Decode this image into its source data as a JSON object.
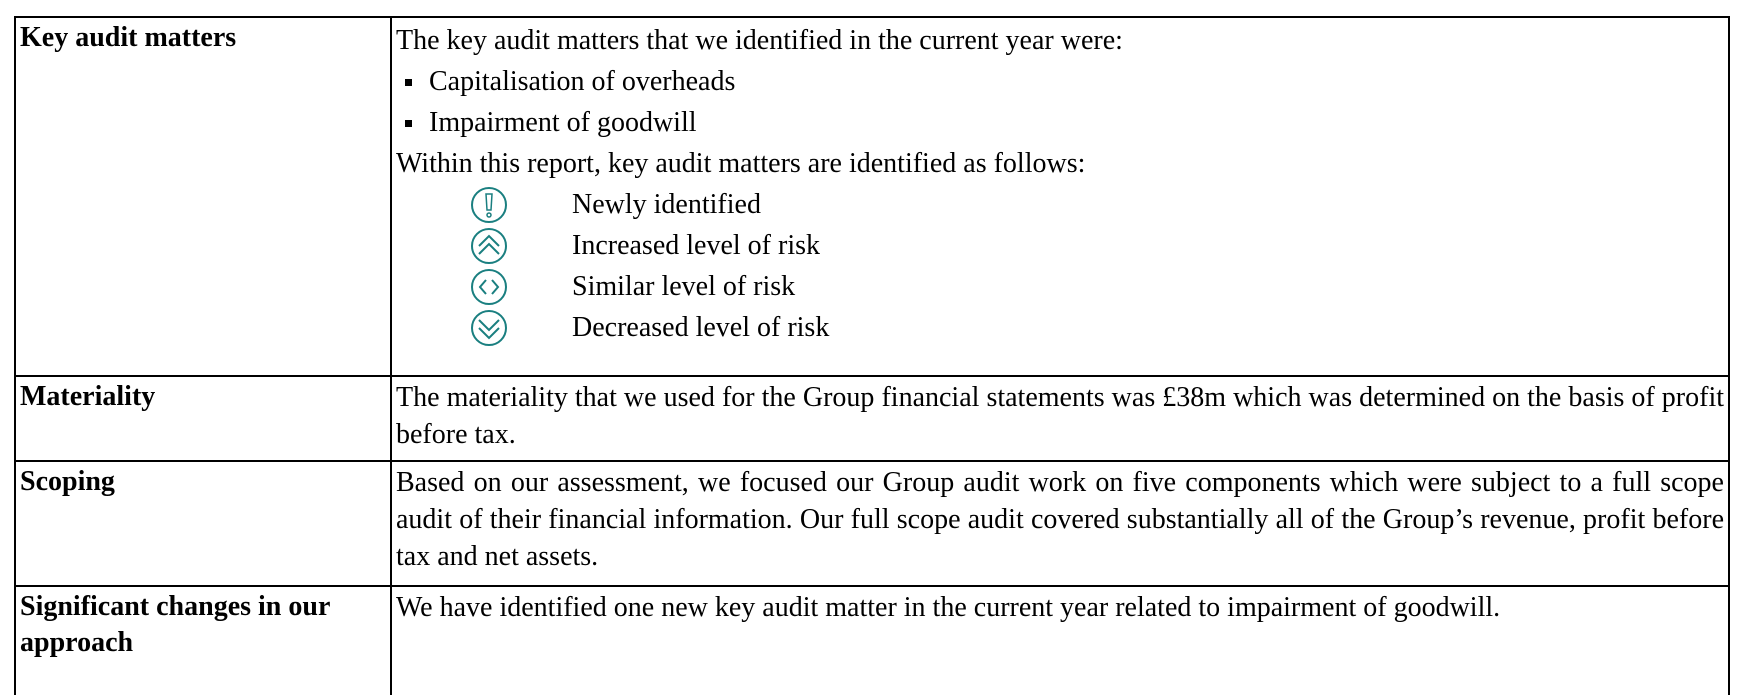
{
  "rows": [
    {
      "label": "Key audit matters",
      "intro": "The key audit matters that we identified in the current year were:",
      "bullets": [
        "Capitalisation of overheads",
        "Impairment of goodwill"
      ],
      "legend_intro": "Within this report, key audit matters are identified as follows:",
      "legend": [
        "Newly identified",
        "Increased level of risk",
        "Similar level of risk",
        "Decreased level of risk"
      ]
    },
    {
      "label": "Materiality",
      "text": "The materiality that we used for the Group financial statements was £38m which was determined on the basis of profit before tax."
    },
    {
      "label": "Scoping",
      "text": "Based on our assessment, we focused our Group audit work on five components which were subject to a full scope audit of their financial information.  Our full scope audit covered substantially all of the Group’s revenue, profit before tax and net assets."
    },
    {
      "label": "Significant changes in our approach",
      "text": "We have identified one new key audit matter in the current year related to impairment of goodwill."
    }
  ]
}
